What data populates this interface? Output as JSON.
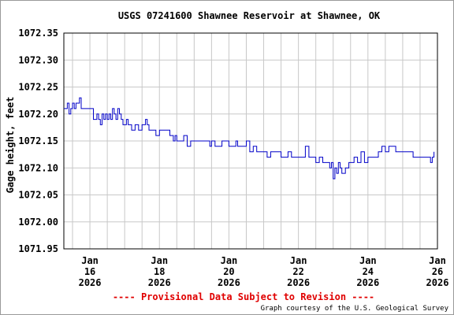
{
  "chart_data": {
    "type": "line",
    "title": "USGS 07241600 Shawnee Reservoir at Shawnee, OK",
    "ylabel": "Gage height, feet",
    "ylim": [
      1071.95,
      1072.35
    ],
    "yticks": [
      "1072.35",
      "1072.30",
      "1072.25",
      "1072.20",
      "1072.15",
      "1072.10",
      "1072.05",
      "1072.00",
      "1071.95"
    ],
    "xlim": [
      15.25,
      26.0
    ],
    "xticks": [
      {
        "x": 16,
        "month": "Jan",
        "day": "16",
        "year": "2026"
      },
      {
        "x": 18,
        "month": "Jan",
        "day": "18",
        "year": "2026"
      },
      {
        "x": 20,
        "month": "Jan",
        "day": "20",
        "year": "2026"
      },
      {
        "x": 22,
        "month": "Jan",
        "day": "22",
        "year": "2026"
      },
      {
        "x": 24,
        "month": "Jan",
        "day": "24",
        "year": "2026"
      },
      {
        "x": 26,
        "month": "Jan",
        "day": "26",
        "year": "2026"
      }
    ],
    "grid": true,
    "series": [
      {
        "color": "#0000c8",
        "x": [
          15.25,
          15.3,
          15.35,
          15.4,
          15.45,
          15.5,
          15.55,
          15.6,
          15.65,
          15.7,
          15.75,
          15.8,
          15.85,
          15.9,
          16.0,
          16.1,
          16.2,
          16.25,
          16.3,
          16.35,
          16.4,
          16.45,
          16.5,
          16.55,
          16.6,
          16.65,
          16.7,
          16.75,
          16.8,
          16.85,
          16.9,
          16.95,
          17.0,
          17.05,
          17.1,
          17.15,
          17.2,
          17.3,
          17.4,
          17.5,
          17.55,
          17.6,
          17.65,
          17.7,
          17.8,
          17.9,
          18.0,
          18.1,
          18.2,
          18.3,
          18.35,
          18.4,
          18.45,
          18.5,
          18.6,
          18.7,
          18.8,
          18.9,
          19.0,
          19.05,
          19.1,
          19.15,
          19.2,
          19.25,
          19.3,
          19.35,
          19.4,
          19.45,
          19.5,
          19.6,
          19.8,
          20.0,
          20.2,
          20.25,
          20.3,
          20.4,
          20.5,
          20.6,
          20.7,
          20.8,
          20.9,
          21.0,
          21.1,
          21.2,
          21.3,
          21.4,
          21.5,
          21.6,
          21.7,
          21.8,
          21.9,
          22.0,
          22.1,
          22.2,
          22.3,
          22.35,
          22.4,
          22.5,
          22.6,
          22.7,
          22.8,
          22.85,
          22.9,
          22.95,
          23.0,
          23.05,
          23.1,
          23.15,
          23.2,
          23.25,
          23.3,
          23.35,
          23.4,
          23.45,
          23.5,
          23.6,
          23.7,
          23.8,
          23.9,
          24.0,
          24.1,
          24.2,
          24.3,
          24.4,
          24.5,
          24.6,
          24.7,
          24.8,
          24.9,
          25.0,
          25.1,
          25.2,
          25.3,
          25.4,
          25.5,
          25.6,
          25.8,
          25.85,
          25.9
        ],
        "y": [
          1072.21,
          1072.21,
          1072.22,
          1072.2,
          1072.21,
          1072.22,
          1072.21,
          1072.22,
          1072.22,
          1072.23,
          1072.21,
          1072.21,
          1072.21,
          1072.21,
          1072.21,
          1072.19,
          1072.2,
          1072.19,
          1072.18,
          1072.2,
          1072.19,
          1072.2,
          1072.19,
          1072.2,
          1072.19,
          1072.21,
          1072.2,
          1072.19,
          1072.21,
          1072.2,
          1072.19,
          1072.18,
          1072.18,
          1072.19,
          1072.18,
          1072.18,
          1072.17,
          1072.18,
          1072.17,
          1072.18,
          1072.18,
          1072.19,
          1072.18,
          1072.17,
          1072.17,
          1072.16,
          1072.17,
          1072.17,
          1072.17,
          1072.16,
          1072.16,
          1072.15,
          1072.16,
          1072.15,
          1072.15,
          1072.16,
          1072.14,
          1072.15,
          1072.15,
          1072.15,
          1072.15,
          1072.15,
          1072.15,
          1072.15,
          1072.15,
          1072.15,
          1072.15,
          1072.14,
          1072.15,
          1072.14,
          1072.15,
          1072.14,
          1072.15,
          1072.14,
          1072.14,
          1072.14,
          1072.15,
          1072.13,
          1072.14,
          1072.13,
          1072.13,
          1072.13,
          1072.12,
          1072.13,
          1072.13,
          1072.13,
          1072.12,
          1072.12,
          1072.13,
          1072.12,
          1072.12,
          1072.12,
          1072.12,
          1072.14,
          1072.12,
          1072.12,
          1072.12,
          1072.11,
          1072.12,
          1072.11,
          1072.11,
          1072.11,
          1072.1,
          1072.11,
          1072.08,
          1072.1,
          1072.09,
          1072.11,
          1072.1,
          1072.09,
          1072.09,
          1072.1,
          1072.1,
          1072.11,
          1072.11,
          1072.12,
          1072.11,
          1072.13,
          1072.11,
          1072.12,
          1072.12,
          1072.12,
          1072.13,
          1072.14,
          1072.13,
          1072.14,
          1072.14,
          1072.13,
          1072.13,
          1072.13,
          1072.13,
          1072.13,
          1072.12,
          1072.12,
          1072.12,
          1072.12,
          1072.11,
          1072.12,
          1072.13
        ]
      }
    ]
  },
  "footer": {
    "provisional": "---- Provisional Data Subject to Revision ----",
    "credit": "Graph courtesy of the U.S. Geological Survey"
  }
}
